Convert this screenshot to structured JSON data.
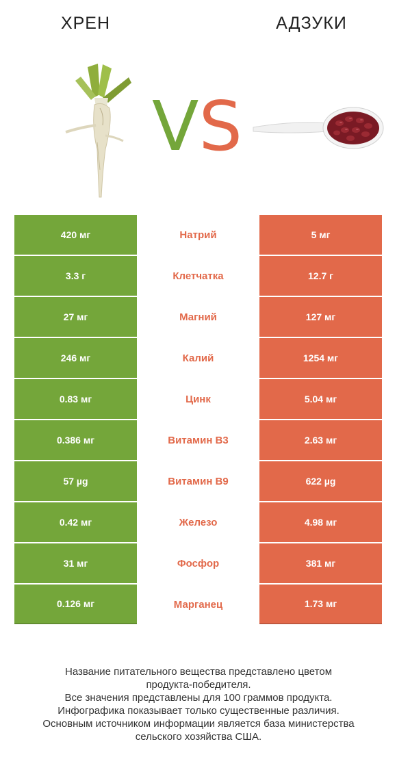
{
  "header": {
    "left_title": "ХРЕН",
    "vs_v": "V",
    "vs_s": "S",
    "right_title": "АДЗУКИ"
  },
  "colors": {
    "left": "#74a63a",
    "right": "#e2694a"
  },
  "rows": [
    {
      "left": "420 мг",
      "nutrient": "Натрий",
      "right": "5 мг"
    },
    {
      "left": "3.3 г",
      "nutrient": "Клетчатка",
      "right": "12.7 г"
    },
    {
      "left": "27 мг",
      "nutrient": "Магний",
      "right": "127 мг"
    },
    {
      "left": "246 мг",
      "nutrient": "Калий",
      "right": "1254 мг"
    },
    {
      "left": "0.83 мг",
      "nutrient": "Цинк",
      "right": "5.04 мг"
    },
    {
      "left": "0.386 мг",
      "nutrient": "Витамин B3",
      "right": "2.63 мг"
    },
    {
      "left": "57 µg",
      "nutrient": "Витамин B9",
      "right": "622 µg"
    },
    {
      "left": "0.42 мг",
      "nutrient": "Железо",
      "right": "4.98 мг"
    },
    {
      "left": "31 мг",
      "nutrient": "Фосфор",
      "right": "381 мг"
    },
    {
      "left": "0.126 мг",
      "nutrient": "Марганец",
      "right": "1.73 мг"
    }
  ],
  "footer": {
    "line1": "Название питательного вещества представлено цветом",
    "line2": "продукта-победителя.",
    "line3": "Все значения представлены для 100 граммов продукта.",
    "line4": "Инфографика показывает только существенные различия.",
    "line5": "Основным источником информации является база министерства",
    "line6": "сельского хозяйства США."
  }
}
